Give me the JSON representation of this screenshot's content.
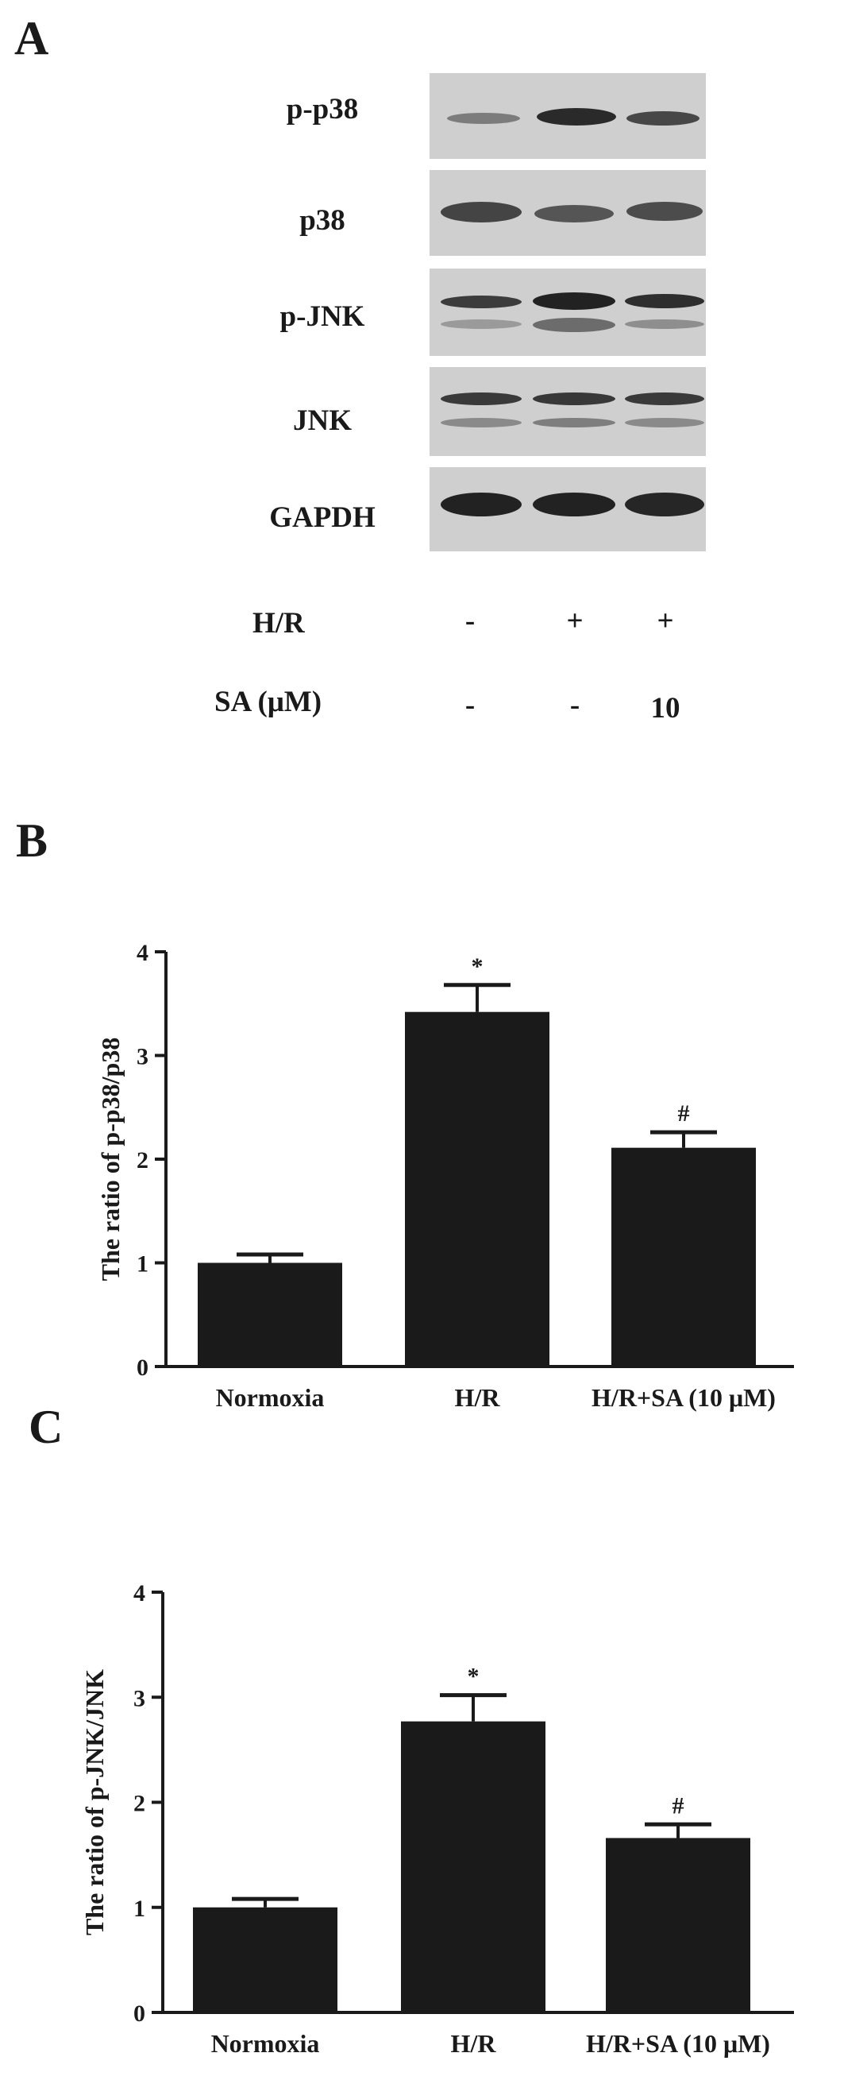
{
  "panel_a": {
    "letter": "A",
    "blots": [
      {
        "label": "p-p38"
      },
      {
        "label": "p38"
      },
      {
        "label": "p-JNK"
      },
      {
        "label": "JNK"
      },
      {
        "label": "GAPDH"
      }
    ],
    "treatments": [
      {
        "label": "H/R",
        "values": [
          "-",
          "+",
          "+"
        ]
      },
      {
        "label": "SA (μM)",
        "values": [
          "-",
          "-",
          "10"
        ]
      }
    ]
  },
  "panel_b": {
    "letter": "B"
  },
  "panel_c": {
    "letter": "C"
  },
  "colors": {
    "bar": "#1a1a1a",
    "axis": "#1a1a1a",
    "blot_bg": "#cfcfcf",
    "band": "#2a2a2a"
  },
  "chart_data": [
    {
      "type": "bar",
      "panel": "B",
      "categories": [
        "Normoxia",
        "H/R",
        "H/R+SA (10 μM)"
      ],
      "values": [
        1.0,
        3.42,
        2.11
      ],
      "errors": [
        0.08,
        0.26,
        0.15
      ],
      "annotations": [
        "",
        "*",
        "#"
      ],
      "ylabel": "The ratio of p-p38/p38",
      "xlabel": "",
      "ylim": [
        0,
        4
      ],
      "yticks": [
        0,
        1,
        2,
        3,
        4
      ],
      "grid": false
    },
    {
      "type": "bar",
      "panel": "C",
      "categories": [
        "Normoxia",
        "H/R",
        "H/R+SA (10 μM)"
      ],
      "values": [
        1.0,
        2.77,
        1.66
      ],
      "errors": [
        0.08,
        0.25,
        0.13
      ],
      "annotations": [
        "",
        "*",
        "#"
      ],
      "ylabel": "The ratio of p-JNK/JNK",
      "xlabel": "",
      "ylim": [
        0,
        4
      ],
      "yticks": [
        0,
        1,
        2,
        3,
        4
      ],
      "grid": false
    }
  ]
}
